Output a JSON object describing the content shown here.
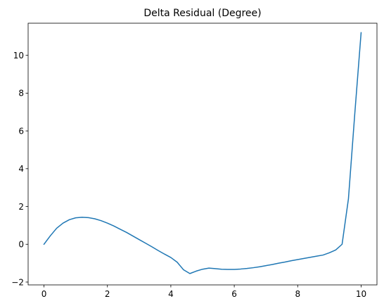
{
  "chart_data": {
    "type": "line",
    "title": "Delta Residual (Degree)",
    "xlabel": "",
    "ylabel": "",
    "xlim": [
      -0.5,
      10.5
    ],
    "ylim": [
      -2.15,
      11.7
    ],
    "x_ticks": [
      0,
      2,
      4,
      6,
      8,
      10
    ],
    "x_tick_labels": [
      "0",
      "2",
      "4",
      "6",
      "8",
      "10"
    ],
    "y_ticks": [
      -2,
      0,
      2,
      4,
      6,
      8,
      10
    ],
    "y_tick_labels": [
      "−2",
      "0",
      "2",
      "4",
      "6",
      "8",
      "10"
    ],
    "grid": false,
    "legend": "none",
    "series": [
      {
        "color": "#1f77b4",
        "x": [
          0,
          0.2,
          0.4,
          0.6,
          0.8,
          1.0,
          1.2,
          1.4,
          1.6,
          1.8,
          2.0,
          2.2,
          2.4,
          2.6,
          2.8,
          3.0,
          3.2,
          3.4,
          3.6,
          3.8,
          4.0,
          4.2,
          4.4,
          4.6,
          4.8,
          5.0,
          5.2,
          5.4,
          5.6,
          5.8,
          6.0,
          6.2,
          6.4,
          6.6,
          6.8,
          7.0,
          7.2,
          7.4,
          7.6,
          7.8,
          8.0,
          8.2,
          8.4,
          8.6,
          8.8,
          9.0,
          9.2,
          9.4,
          9.6,
          9.8,
          10.0
        ],
        "y": [
          0.0,
          0.45,
          0.85,
          1.12,
          1.3,
          1.4,
          1.43,
          1.41,
          1.35,
          1.25,
          1.12,
          0.97,
          0.8,
          0.63,
          0.44,
          0.25,
          0.06,
          -0.13,
          -0.33,
          -0.52,
          -0.7,
          -0.95,
          -1.35,
          -1.55,
          -1.42,
          -1.32,
          -1.26,
          -1.29,
          -1.32,
          -1.33,
          -1.33,
          -1.31,
          -1.28,
          -1.24,
          -1.19,
          -1.13,
          -1.07,
          -1.0,
          -0.94,
          -0.87,
          -0.81,
          -0.75,
          -0.69,
          -0.63,
          -0.57,
          -0.45,
          -0.3,
          0.0,
          2.4,
          6.9,
          11.2
        ]
      }
    ]
  }
}
